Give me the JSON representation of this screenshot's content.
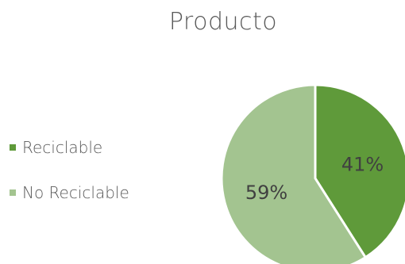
{
  "chart_data": {
    "type": "pie",
    "title": "Producto",
    "categories": [
      "Reciclable",
      "No Reciclable"
    ],
    "values": [
      41,
      59
    ],
    "labels": [
      "41%",
      "59%"
    ],
    "colors": [
      "#5f9a3a",
      "#a3c490"
    ],
    "legend_position": "left"
  }
}
